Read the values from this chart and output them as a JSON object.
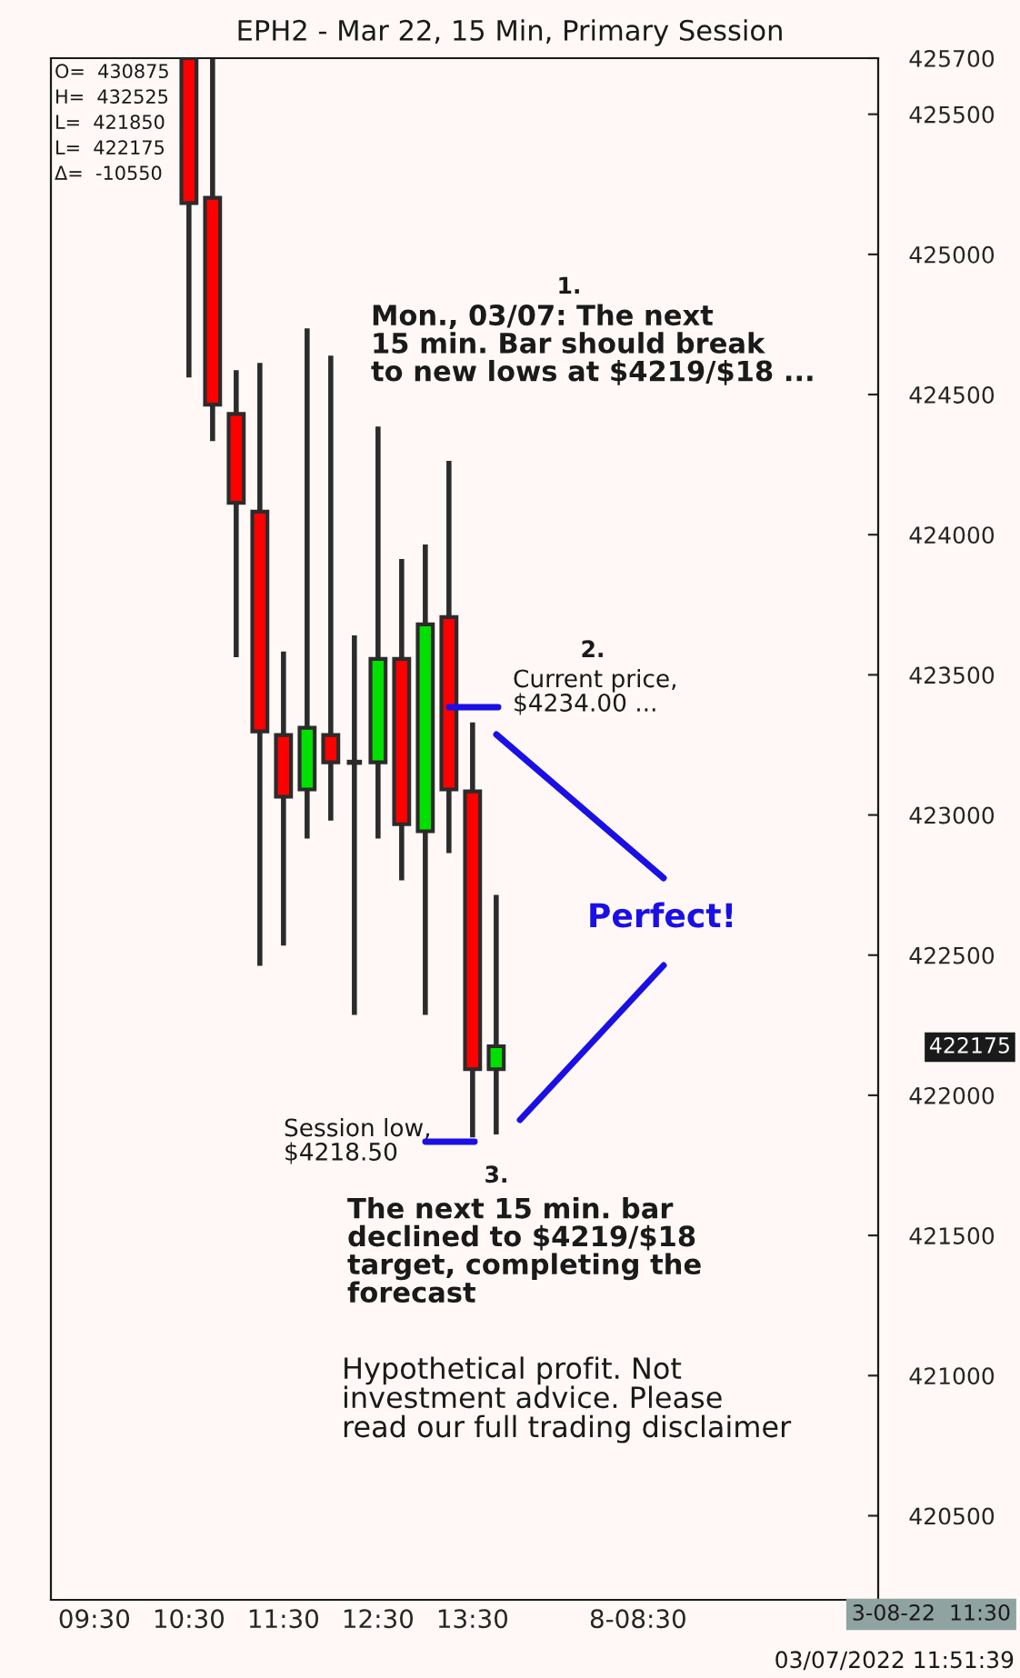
{
  "chart_data": {
    "type": "candlestick",
    "title": "EPH2 - Mar 22, 15 Min, Primary Session",
    "x": [
      10.5,
      10.75,
      11.0,
      11.25,
      11.5,
      11.75,
      12.0,
      12.25,
      12.5,
      12.75,
      13.0,
      13.25,
      13.5,
      13.75
    ],
    "ohlc": [
      [
        425700,
        425700,
        424561,
        425183
      ],
      [
        425202,
        425700,
        424334,
        424464
      ],
      [
        424431,
        424587,
        423563,
        424114
      ],
      [
        424082,
        424613,
        422462,
        423298
      ],
      [
        423285,
        423583,
        422534,
        423065
      ],
      [
        423091,
        424736,
        422916,
        423311
      ],
      [
        423285,
        424639,
        422980,
        423188
      ],
      [
        423188,
        423641,
        422287,
        423188
      ],
      [
        423188,
        424386,
        422916,
        423557
      ],
      [
        423557,
        423913,
        422767,
        422967
      ],
      [
        422942,
        423965,
        422287,
        423680
      ],
      [
        423706,
        424263,
        422864,
        423091
      ],
      [
        423084,
        423330,
        421850,
        422093
      ],
      [
        422093,
        422715,
        421860,
        422175
      ]
    ],
    "colors": [
      "#ff0000",
      "#ff0000",
      "#ff0000",
      "#ff0000",
      "#ff0000",
      "#00e000",
      "#ff0000",
      "#2b2b2b",
      "#00e000",
      "#ff0000",
      "#00e000",
      "#ff0000",
      "#ff0000",
      "#00e000"
    ],
    "xlim": [
      9.04,
      17.79
    ],
    "xticks": [
      {
        "value": 9.5,
        "label": "09:30"
      },
      {
        "value": 10.5,
        "label": "10:30"
      },
      {
        "value": 11.5,
        "label": "11:30"
      },
      {
        "value": 12.5,
        "label": "12:30"
      },
      {
        "value": 13.5,
        "label": "13:30"
      },
      {
        "value": 15.25,
        "label": "8-08:30"
      }
    ],
    "ylim": [
      420200,
      425700
    ],
    "yticks": [
      420500,
      421000,
      421500,
      422000,
      422500,
      423000,
      423500,
      424000,
      424500,
      425000,
      425500,
      425700
    ],
    "annotations": [
      "O=  430875",
      "H=  432525",
      "L=  421850",
      "L=  422175",
      "Δ=  -10550",
      "1.",
      "Mon., 03/07: The next\n15 min. Bar should break\nto new lows at $4219/$18 ...",
      "2.",
      "Current price,\n$4234.00 ...",
      "Perfect!",
      "Session low,\n$4218.50",
      "3.",
      "The next 15 min. bar\ndeclined to $4219/$18\ntarget, completing the\nforecast",
      "Hypothetical profit. Not\ninvestment advice. Please\nread our full trading disclaimer",
      "3-08-22  11:30",
      "03/07/2022 11:51:39",
      "422175"
    ],
    "grid": false,
    "legend": false
  }
}
